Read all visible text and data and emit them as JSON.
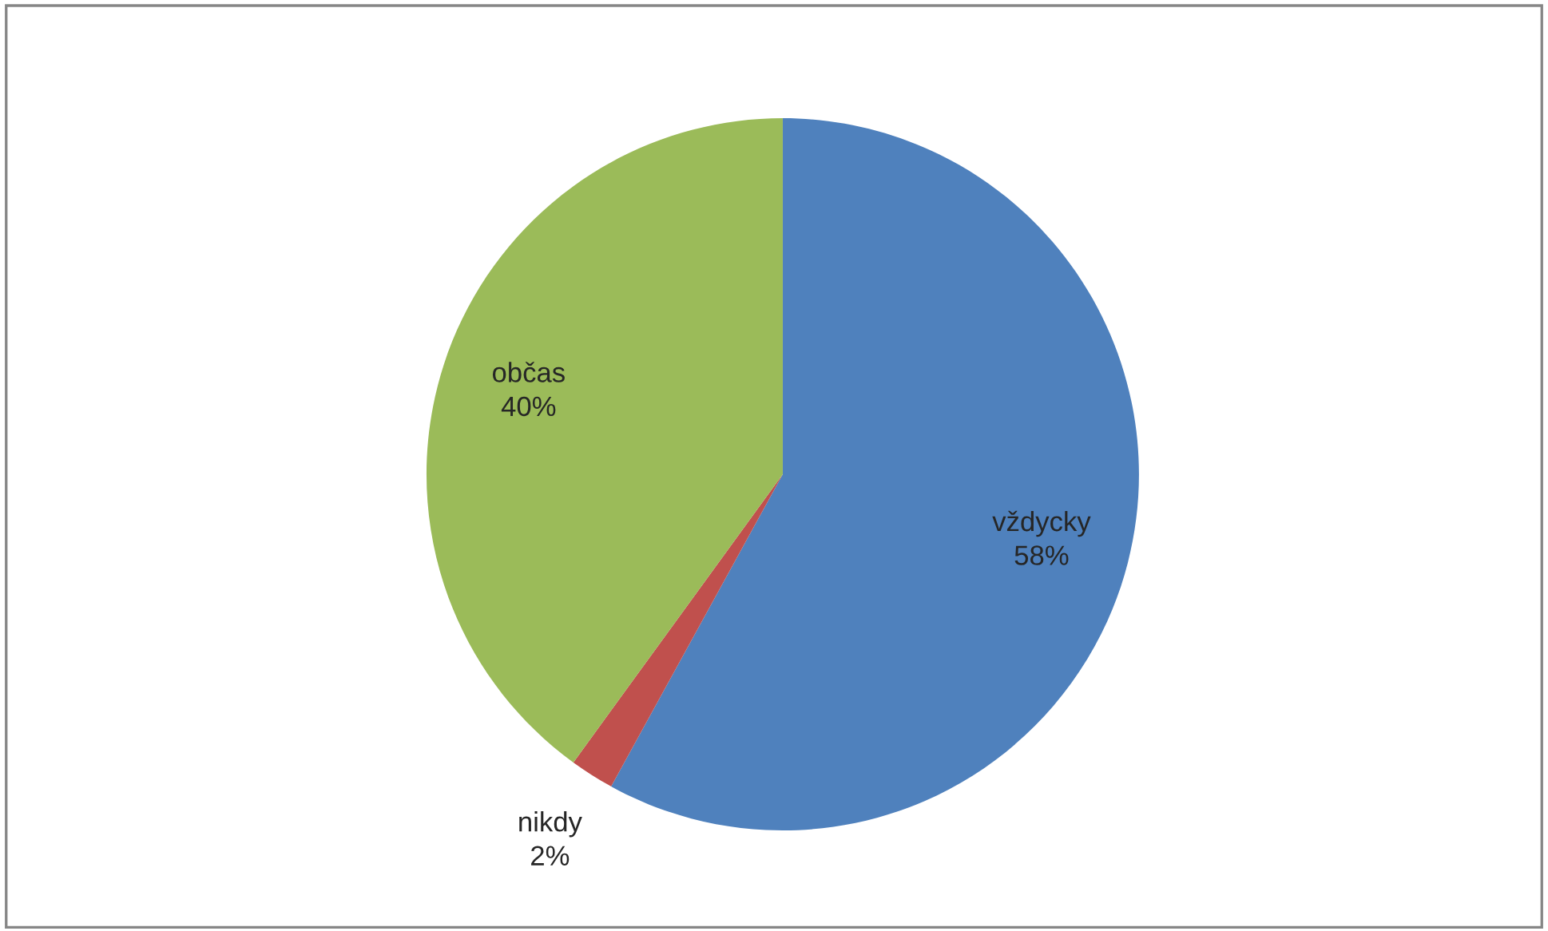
{
  "chart_data": {
    "type": "pie",
    "categories": [
      "vždycky",
      "nikdy",
      "občas"
    ],
    "values": [
      58,
      2,
      40
    ],
    "colors": [
      "#4f81bd",
      "#c0504d",
      "#9bbb59"
    ],
    "value_labels": [
      "58%",
      "2%",
      "40%"
    ]
  }
}
